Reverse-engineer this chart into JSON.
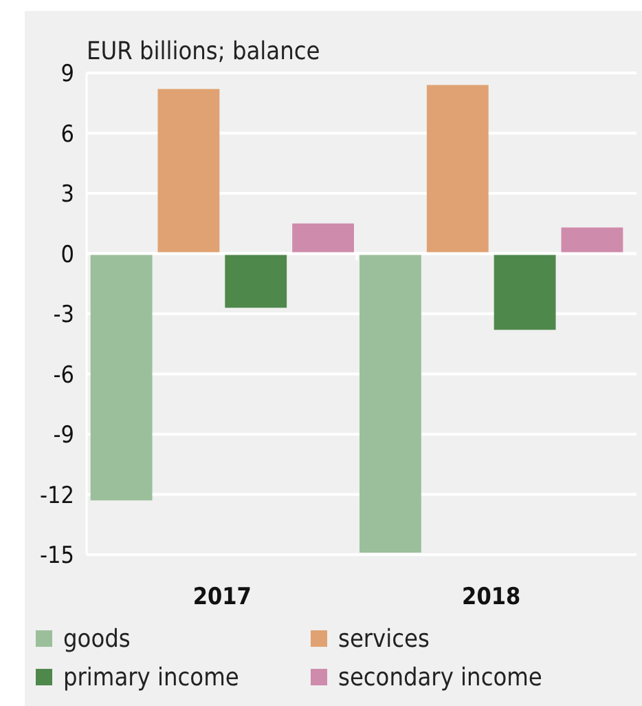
{
  "chart_data": {
    "type": "bar",
    "ylabel": "EUR billions; balance",
    "categories": [
      "2017",
      "2018"
    ],
    "series": [
      {
        "name": "goods",
        "color": "#9bbf9b",
        "values": [
          -12.3,
          -14.9
        ]
      },
      {
        "name": "services",
        "color": "#e0a272",
        "values": [
          8.2,
          8.4
        ]
      },
      {
        "name": "primary income",
        "color": "#4f884b",
        "values": [
          -2.7,
          -3.8
        ]
      },
      {
        "name": "secondary income",
        "color": "#cf8bac",
        "values": [
          1.5,
          1.3
        ]
      }
    ],
    "ylim": [
      -15,
      9
    ],
    "yticks": [
      -15,
      -12,
      -9,
      -6,
      -3,
      0,
      3,
      6,
      9
    ],
    "grid": "y",
    "legend": "bottom"
  }
}
